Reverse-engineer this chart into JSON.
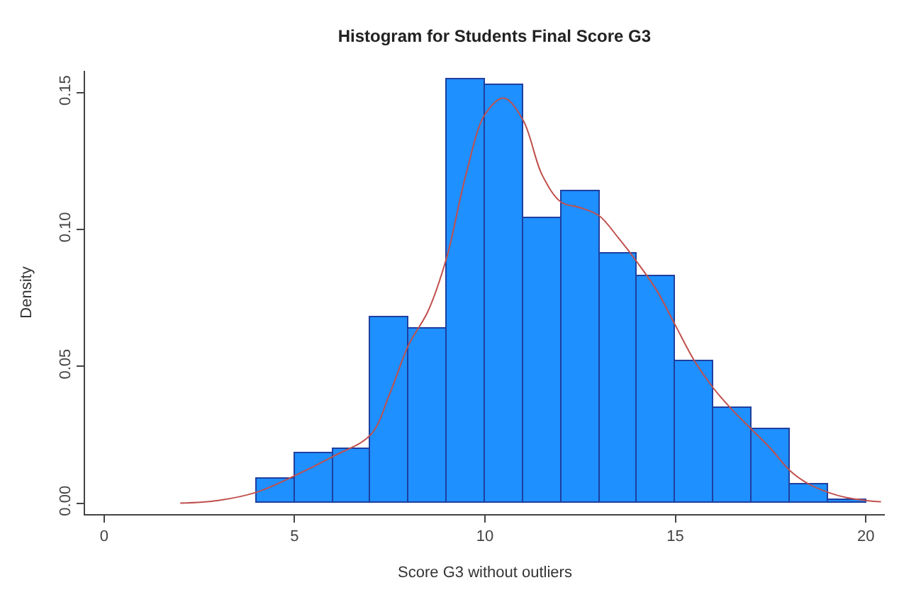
{
  "chart_data": {
    "type": "histogram",
    "title": "Histogram for Students Final Score G3",
    "xlabel": "Score G3 without outliers",
    "ylabel": "Density",
    "bins": [
      4,
      5,
      6,
      7,
      8,
      9,
      10,
      11,
      12,
      13,
      14,
      15,
      16,
      17,
      18,
      19,
      20
    ],
    "values": [
      0.009,
      0.018,
      0.02,
      0.068,
      0.064,
      0.155,
      0.153,
      0.104,
      0.114,
      0.091,
      0.083,
      0.052,
      0.035,
      0.027,
      0.007,
      0.001
    ],
    "color": "#1e90ff",
    "series": [
      {
        "type": "line",
        "color": "#c0504d",
        "x": [
          2,
          3,
          4,
          5,
          6,
          7,
          7.5,
          8,
          8.5,
          9,
          9.5,
          10,
          10.5,
          11,
          11.5,
          12,
          12.5,
          13,
          13.5,
          14,
          14.5,
          15,
          15.5,
          16,
          16.5,
          17,
          17.5,
          18,
          18.5,
          19,
          19.5,
          20,
          20.4
        ],
        "values": [
          0,
          0.001,
          0.004,
          0.01,
          0.017,
          0.025,
          0.04,
          0.058,
          0.07,
          0.09,
          0.12,
          0.142,
          0.148,
          0.14,
          0.12,
          0.11,
          0.108,
          0.105,
          0.097,
          0.088,
          0.078,
          0.065,
          0.052,
          0.042,
          0.034,
          0.027,
          0.02,
          0.012,
          0.007,
          0.004,
          0.002,
          0.001,
          0.0005
        ]
      }
    ],
    "xlim": [
      -0.5,
      20.5
    ],
    "xticks": [
      0,
      5,
      10,
      15,
      20
    ],
    "ylim": [
      -0.004,
      0.158
    ],
    "yticks": [
      {
        "value": 0,
        "label": "0.00"
      },
      {
        "value": 0.05,
        "label": "0.05"
      },
      {
        "value": 0.1,
        "label": "0.10"
      },
      {
        "value": 0.15,
        "label": "0.15"
      }
    ],
    "tick_labels": "xy"
  }
}
